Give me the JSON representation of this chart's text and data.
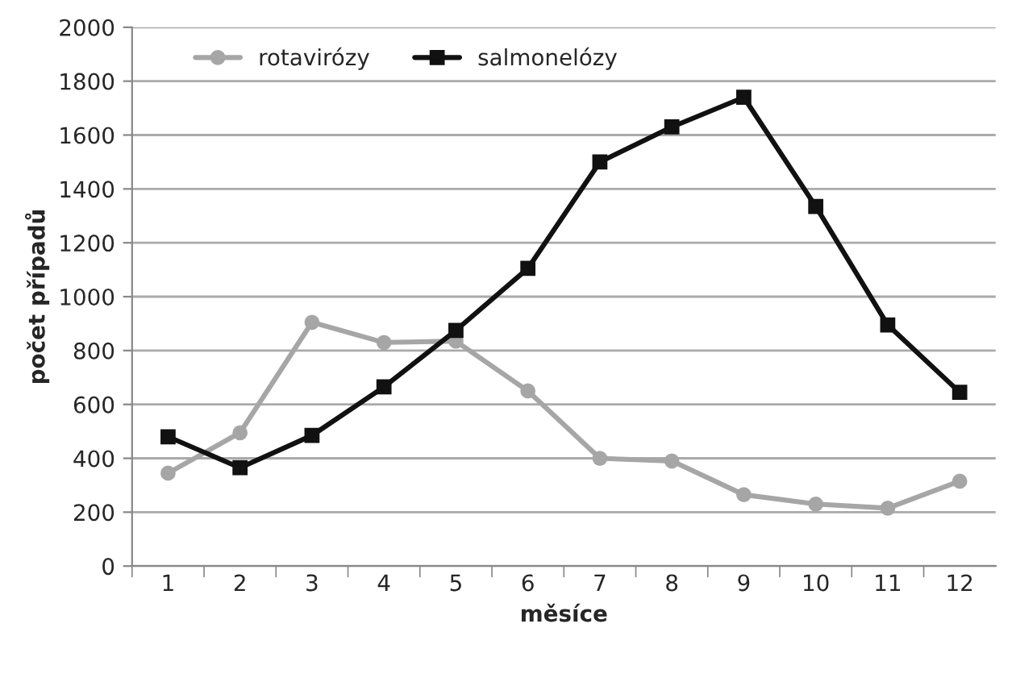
{
  "chart_data": {
    "type": "line",
    "xlabel": "měsíce",
    "ylabel": "počet případů",
    "categories": [
      "1",
      "2",
      "3",
      "4",
      "5",
      "6",
      "7",
      "8",
      "9",
      "10",
      "11",
      "12"
    ],
    "series": [
      {
        "name": "rotavirózy",
        "color": "#a6a6a6",
        "marker": "circle",
        "values": [
          345,
          495,
          905,
          830,
          835,
          650,
          400,
          390,
          265,
          230,
          215,
          315
        ]
      },
      {
        "name": "salmonelózy",
        "color": "#111111",
        "marker": "square",
        "values": [
          480,
          365,
          485,
          665,
          875,
          1105,
          1500,
          1630,
          1740,
          1335,
          895,
          645
        ]
      }
    ],
    "ylim": [
      0,
      2000
    ],
    "yticks": [
      0,
      200,
      400,
      600,
      800,
      1000,
      1200,
      1400,
      1600,
      1800,
      2000
    ],
    "grid": "y",
    "legend": "top left"
  }
}
